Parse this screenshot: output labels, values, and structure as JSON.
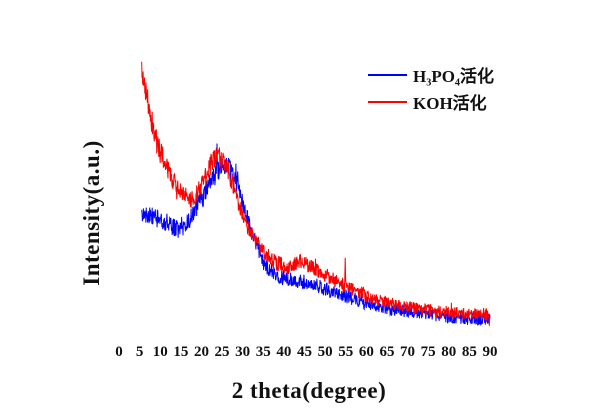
{
  "figure": {
    "background": "#ffffff",
    "text_color": "#111111"
  },
  "chart_data": {
    "type": "line",
    "title": "",
    "xlabel": "2 theta(degree)",
    "ylabel": "Intensity(a.u.)",
    "xlim": [
      0,
      90
    ],
    "x_ticks": [
      0,
      5,
      10,
      15,
      20,
      25,
      30,
      35,
      40,
      45,
      50,
      55,
      60,
      65,
      70,
      75,
      80,
      85,
      90
    ],
    "y_ticks": [],
    "grid": false,
    "axes_lines_visible": false,
    "legend": {
      "visible": true,
      "position": "top-right-inside"
    },
    "series": [
      {
        "name": "H₃PO₄活化",
        "color": "#0000ff",
        "x_start_deg": 5.5,
        "x_end_deg": 90,
        "main_peak_2theta": 26,
        "points": [
          [
            5.5,
            41.3
          ],
          [
            6,
            41.0
          ],
          [
            7,
            40.7
          ],
          [
            8,
            40.4
          ],
          [
            9,
            39.7
          ],
          [
            10,
            39.4
          ],
          [
            11,
            38.8
          ],
          [
            12,
            37.8
          ],
          [
            13,
            36.9
          ],
          [
            14,
            36.2
          ],
          [
            15,
            36.5
          ],
          [
            16,
            37.5
          ],
          [
            17,
            39.1
          ],
          [
            18,
            41.0
          ],
          [
            19,
            43.3
          ],
          [
            20,
            45.8
          ],
          [
            21,
            48.4
          ],
          [
            22,
            50.6
          ],
          [
            23,
            52.6
          ],
          [
            24,
            54.5
          ],
          [
            25,
            55.4
          ],
          [
            26,
            55.8
          ],
          [
            26.5,
            55.8
          ],
          [
            27,
            54.8
          ],
          [
            28,
            51.9
          ],
          [
            29,
            48.7
          ],
          [
            30,
            44.6
          ],
          [
            31,
            40.4
          ],
          [
            32,
            36.5
          ],
          [
            33,
            32.7
          ],
          [
            34,
            28.8
          ],
          [
            35,
            25.3
          ],
          [
            36,
            23.7
          ],
          [
            37,
            22.8
          ],
          [
            38,
            21.8
          ],
          [
            39,
            21.2
          ],
          [
            40,
            20.5
          ],
          [
            41,
            20.2
          ],
          [
            42,
            19.9
          ],
          [
            43,
            19.6
          ],
          [
            44,
            19.6
          ],
          [
            45,
            19.2
          ],
          [
            46,
            18.9
          ],
          [
            47,
            18.6
          ],
          [
            48,
            18.3
          ],
          [
            50,
            17.0
          ],
          [
            52,
            16.0
          ],
          [
            55,
            14.7
          ],
          [
            58,
            13.5
          ],
          [
            60,
            12.5
          ],
          [
            63,
            11.5
          ],
          [
            65,
            10.9
          ],
          [
            68,
            10.3
          ],
          [
            70,
            9.9
          ],
          [
            73,
            9.3
          ],
          [
            75,
            9.0
          ],
          [
            78,
            8.3
          ],
          [
            80,
            8.0
          ],
          [
            83,
            7.7
          ],
          [
            85,
            7.4
          ],
          [
            88,
            7.1
          ],
          [
            90,
            7.1
          ]
        ],
        "noise_amp_segments": [
          [
            5.5,
            18,
            3.0
          ],
          [
            18,
            29,
            3.4
          ],
          [
            29,
            40,
            2.6
          ],
          [
            40,
            60,
            2.3
          ],
          [
            60,
            90,
            2.1
          ]
        ],
        "spikes": [
          [
            23.8,
            9.5
          ]
        ]
      },
      {
        "name": "KOH活化",
        "color": "#ff0000",
        "x_start_deg": 5.5,
        "x_end_deg": 90,
        "main_peak_2theta": 24,
        "secondary_peak_2theta": 44,
        "points": [
          [
            5.5,
            87.2
          ],
          [
            6,
            83.3
          ],
          [
            7,
            77.6
          ],
          [
            8,
            70.5
          ],
          [
            9,
            64.7
          ],
          [
            10,
            60.9
          ],
          [
            11,
            57.7
          ],
          [
            12,
            54.5
          ],
          [
            13,
            51.9
          ],
          [
            14,
            50.0
          ],
          [
            15,
            48.1
          ],
          [
            16,
            46.8
          ],
          [
            17,
            45.8
          ],
          [
            18,
            46.2
          ],
          [
            19,
            47.8
          ],
          [
            20,
            50.0
          ],
          [
            21,
            52.9
          ],
          [
            22,
            56.1
          ],
          [
            23,
            58.7
          ],
          [
            23.8,
            59.6
          ],
          [
            25,
            59.0
          ],
          [
            26,
            57.1
          ],
          [
            27,
            53.2
          ],
          [
            28,
            48.7
          ],
          [
            29,
            44.2
          ],
          [
            30,
            40.7
          ],
          [
            31,
            37.8
          ],
          [
            32,
            35.3
          ],
          [
            33,
            33.0
          ],
          [
            34,
            31.1
          ],
          [
            35,
            29.2
          ],
          [
            36,
            27.9
          ],
          [
            37,
            26.9
          ],
          [
            38,
            25.6
          ],
          [
            39,
            25.0
          ],
          [
            40,
            24.4
          ],
          [
            41,
            24.0
          ],
          [
            42,
            24.7
          ],
          [
            43,
            25.3
          ],
          [
            44,
            26.0
          ],
          [
            45,
            25.6
          ],
          [
            46,
            24.7
          ],
          [
            47,
            23.7
          ],
          [
            48,
            22.8
          ],
          [
            50,
            21.5
          ],
          [
            52,
            20.2
          ],
          [
            55,
            17.9
          ],
          [
            58,
            16.0
          ],
          [
            60,
            14.7
          ],
          [
            63,
            13.5
          ],
          [
            65,
            12.8
          ],
          [
            68,
            11.9
          ],
          [
            70,
            11.2
          ],
          [
            73,
            10.6
          ],
          [
            75,
            10.3
          ],
          [
            78,
            9.6
          ],
          [
            80,
            9.6
          ],
          [
            83,
            9.3
          ],
          [
            85,
            9.0
          ],
          [
            88,
            9.0
          ],
          [
            90,
            8.7
          ]
        ],
        "noise_amp_segments": [
          [
            5.5,
            12,
            3.8
          ],
          [
            12,
            19,
            3.0
          ],
          [
            19,
            28,
            3.2
          ],
          [
            28,
            40,
            2.6
          ],
          [
            40,
            60,
            2.3
          ],
          [
            60,
            90,
            2.0
          ]
        ],
        "spikes": [
          [
            54.9,
            9.0
          ]
        ]
      }
    ]
  }
}
